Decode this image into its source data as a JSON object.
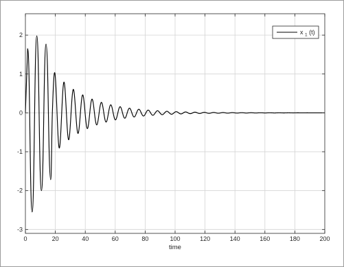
{
  "chart_data": {
    "type": "line",
    "title": "",
    "xlabel": "time",
    "ylabel": "",
    "xlim": [
      0,
      200
    ],
    "ylim": [
      -3.1,
      2.55
    ],
    "grid": true,
    "legend_position": "top-right",
    "x_ticks": [
      0,
      20,
      40,
      60,
      80,
      100,
      120,
      140,
      160,
      180,
      200
    ],
    "y_ticks": [
      -3,
      -2,
      -1,
      0,
      1,
      2
    ],
    "series": [
      {
        "name": "x_1(t)",
        "color": "#000000",
        "model": "damped oscillation",
        "amplitude": 2.4,
        "period": 6.25,
        "decay_rate": 0.043,
        "phase": 0.75,
        "transient_extrema": [
          {
            "x": 1.5,
            "y": 1.65
          },
          {
            "x": 4.5,
            "y": -2.55
          },
          {
            "x": 7.6,
            "y": 1.98
          },
          {
            "x": 10.7,
            "y": -2.0
          },
          {
            "x": 13.8,
            "y": 1.77
          },
          {
            "x": 16.9,
            "y": -1.72
          }
        ]
      }
    ]
  },
  "legend": {
    "main": "x",
    "sub": "1",
    "suffix": "(t)"
  },
  "xlabel_text": "time"
}
